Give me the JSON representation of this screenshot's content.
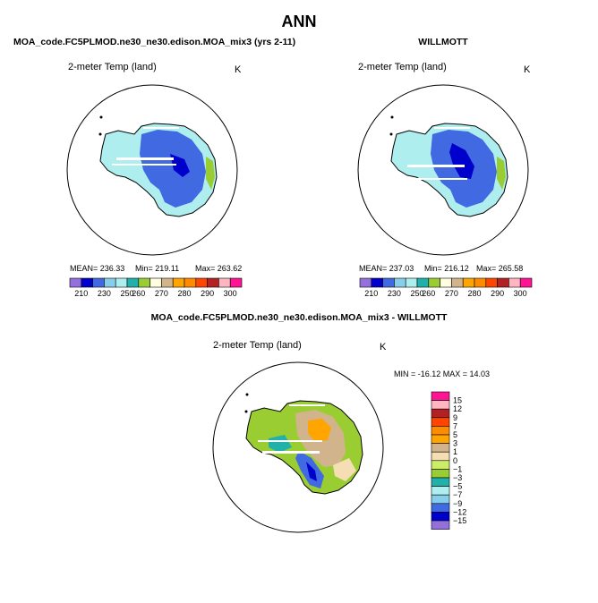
{
  "figure": {
    "title": "ANN",
    "top_left_title": "MOA_code.FC5PLMOD.ne30_ne30.edison.MOA_mix3 (yrs 2-11)",
    "top_right_title": "WILLMOTT",
    "diff_title": "MOA_code.FC5PLMOD.ne30_ne30.edison.MOA_mix3 - WILLMOTT"
  },
  "colors": {
    "abs_scale": [
      "#9370db",
      "#0000cd",
      "#4169e1",
      "#87ceeb",
      "#afeeee",
      "#20b2aa",
      "#9acd32",
      "#ffffe0",
      "#d2b48c",
      "#ffa500",
      "#ff8c00",
      "#ff4500",
      "#b22222",
      "#ffb6c1",
      "#ff1493"
    ],
    "diff_scale": [
      "#9370db",
      "#0000cd",
      "#4169e1",
      "#87ceeb",
      "#afeeee",
      "#20b2aa",
      "#9acd32",
      "#ccee66",
      "#f5deb3",
      "#d2b48c",
      "#ffa500",
      "#ff8c00",
      "#ff4500",
      "#b22222",
      "#ffb6c1",
      "#ff1493"
    ]
  },
  "chart_data": [
    {
      "type": "heatmap",
      "name": "model",
      "title": "MOA_code.FC5PLMOD.ne30_ne30.edison.MOA_mix3 (yrs 2-11)",
      "variable": "2-meter Temp (land)",
      "units": "K",
      "projection": "south polar stereographic",
      "mean_label": "MEAN= 236.33",
      "min_label": "Min= 219.11",
      "max_label": "Max= 263.62",
      "stats": {
        "mean": 236.33,
        "min": 219.11,
        "max": 263.62
      },
      "colorbar_levels": [
        210,
        220,
        230,
        240,
        250,
        255,
        260,
        265,
        270,
        275,
        280,
        285,
        290,
        295,
        300
      ],
      "colorbar_labels": [
        "210",
        "230",
        "250",
        "260",
        "270",
        "280",
        "290",
        "300"
      ]
    },
    {
      "type": "heatmap",
      "name": "obs",
      "title": "WILLMOTT",
      "variable": "2-meter Temp (land)",
      "units": "K",
      "projection": "south polar stereographic",
      "mean_label": "MEAN= 237.03",
      "min_label": "Min= 216.12",
      "max_label": "Max= 265.58",
      "stats": {
        "mean": 237.03,
        "min": 216.12,
        "max": 265.58
      },
      "colorbar_levels": [
        210,
        220,
        230,
        240,
        250,
        255,
        260,
        265,
        270,
        275,
        280,
        285,
        290,
        295,
        300
      ],
      "colorbar_labels": [
        "210",
        "230",
        "250",
        "260",
        "270",
        "280",
        "290",
        "300"
      ]
    },
    {
      "type": "heatmap",
      "name": "difference",
      "title": "MOA_code.FC5PLMOD.ne30_ne30.edison.MOA_mix3 - WILLMOTT",
      "variable": "2-meter Temp (land)",
      "units": "K",
      "projection": "south polar stereographic",
      "minmax_label": "MIN = -16.12 MAX =  14.03",
      "stats": {
        "min": -16.12,
        "max": 14.03
      },
      "colorbar_levels": [
        -15,
        -12,
        -9,
        -7,
        -5,
        -3,
        -1,
        0,
        1,
        3,
        5,
        7,
        9,
        12,
        15
      ],
      "colorbar_labels": [
        "15",
        "12",
        "9",
        "7",
        "5",
        "3",
        "1",
        "0",
        "−1",
        "−3",
        "−5",
        "−7",
        "−9",
        "−12",
        "−15"
      ]
    }
  ]
}
